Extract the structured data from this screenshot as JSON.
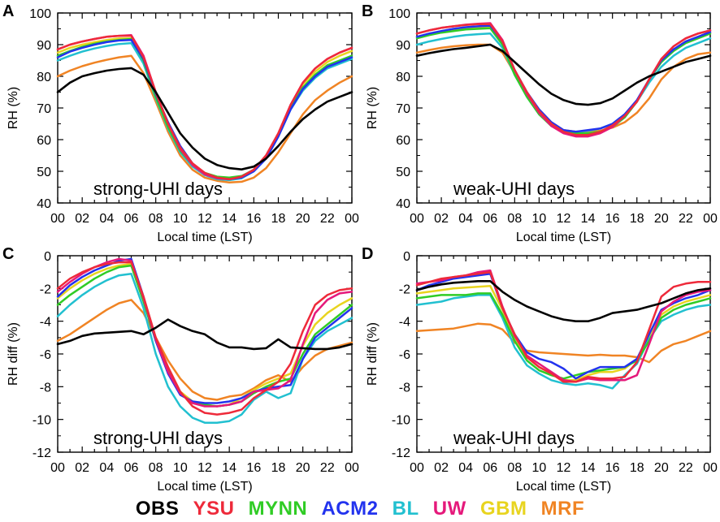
{
  "series_names": [
    "OBS",
    "YSU",
    "MYNN",
    "ACM2",
    "BL",
    "UW",
    "GBM",
    "MRF"
  ],
  "series_colors": {
    "OBS": "#000000",
    "YSU": "#ee2a3a",
    "MYNN": "#30cc25",
    "ACM2": "#2233ee",
    "BL": "#22c0d0",
    "UW": "#e5197b",
    "GBM": "#e8d41f",
    "MRF": "#f08424"
  },
  "x_ticks": [
    "00",
    "02",
    "04",
    "06",
    "08",
    "10",
    "12",
    "14",
    "16",
    "18",
    "20",
    "22",
    "00"
  ],
  "chart_data": [
    {
      "type": "line",
      "panel": "A",
      "annotation": "strong-UHI days",
      "xlabel": "Local time (LST)",
      "ylabel": "RH (%)",
      "xlim": [
        0,
        24
      ],
      "ylim": [
        40,
        100
      ],
      "yticks": [
        40,
        50,
        60,
        70,
        80,
        90,
        100
      ],
      "x": [
        0,
        1,
        2,
        3,
        4,
        5,
        6,
        7,
        8,
        9,
        10,
        11,
        12,
        13,
        14,
        15,
        16,
        17,
        18,
        19,
        20,
        21,
        22,
        23,
        24
      ],
      "series": [
        {
          "name": "OBS",
          "values": [
            75,
            78,
            80,
            81,
            81.8,
            82.3,
            82.6,
            80.5,
            75,
            68.5,
            62,
            57.5,
            54,
            52,
            51,
            50.6,
            51.5,
            54,
            58,
            62.5,
            66.5,
            69.5,
            72,
            73.5,
            75
          ]
        },
        {
          "name": "YSU",
          "values": [
            88.5,
            90,
            91,
            91.8,
            92.5,
            92.8,
            92.8,
            86,
            75,
            65,
            57.5,
            52.5,
            49.5,
            48,
            47.5,
            48.3,
            50.5,
            55,
            62,
            71,
            78,
            82.5,
            85.5,
            87.5,
            89
          ]
        },
        {
          "name": "MYNN",
          "values": [
            86.5,
            88,
            89.3,
            90.3,
            91,
            91.5,
            91.8,
            85,
            73.5,
            64,
            56.5,
            52,
            49.5,
            48.3,
            48,
            48.5,
            50.5,
            54.5,
            61.5,
            70,
            76.5,
            80.5,
            83.5,
            85,
            86.5
          ]
        },
        {
          "name": "ACM2",
          "values": [
            86,
            87.8,
            89,
            90,
            90.8,
            91.3,
            91.5,
            85.5,
            74.5,
            65.5,
            58,
            52.5,
            49.3,
            47.8,
            47.5,
            48,
            50,
            54,
            61,
            69.5,
            76,
            80,
            83,
            84.5,
            86
          ]
        },
        {
          "name": "BL",
          "values": [
            85,
            86.5,
            87.8,
            88.8,
            89.6,
            90.2,
            90.5,
            84,
            73,
            63.5,
            56,
            51.5,
            48.8,
            47.5,
            47.2,
            47.8,
            50,
            54,
            61,
            69.5,
            75.5,
            79.5,
            82.5,
            84,
            85.5
          ]
        },
        {
          "name": "UW",
          "values": [
            88.5,
            90,
            91,
            91.8,
            92.5,
            92.8,
            93,
            86.5,
            75,
            65,
            57,
            52,
            49,
            47.8,
            47.5,
            48.3,
            50.5,
            55,
            62,
            71,
            78,
            82.5,
            85.5,
            87.5,
            89
          ]
        },
        {
          "name": "GBM",
          "values": [
            87.5,
            89,
            90,
            90.8,
            91.5,
            92,
            92,
            86,
            74.5,
            64.5,
            57,
            52,
            49,
            47.8,
            47.5,
            48.3,
            50.5,
            55,
            62,
            70.5,
            77.5,
            81.5,
            84.5,
            86.5,
            88
          ]
        },
        {
          "name": "MRF",
          "values": [
            80,
            81.8,
            83.2,
            84.3,
            85.2,
            86,
            86.5,
            81,
            72,
            62.5,
            55,
            50.5,
            48,
            47,
            46.5,
            46.7,
            48,
            51,
            56,
            62,
            68,
            72.5,
            75.5,
            78,
            80
          ]
        }
      ]
    },
    {
      "type": "line",
      "panel": "B",
      "annotation": "weak-UHI days",
      "xlabel": "Local time (LST)",
      "ylabel": "RH (%)",
      "xlim": [
        0,
        24
      ],
      "ylim": [
        40,
        100
      ],
      "yticks": [
        40,
        50,
        60,
        70,
        80,
        90,
        100
      ],
      "x": [
        0,
        1,
        2,
        3,
        4,
        5,
        6,
        7,
        8,
        9,
        10,
        11,
        12,
        13,
        14,
        15,
        16,
        17,
        18,
        19,
        20,
        21,
        22,
        23,
        24
      ],
      "series": [
        {
          "name": "OBS",
          "values": [
            86.5,
            87.3,
            88,
            88.6,
            89,
            89.5,
            90,
            88,
            84.5,
            81,
            77.5,
            74.5,
            72.5,
            71.3,
            71,
            71.5,
            73,
            75.5,
            78,
            80,
            81.5,
            83,
            84.5,
            85.5,
            86.5
          ]
        },
        {
          "name": "YSU",
          "values": [
            93.5,
            94.5,
            95.3,
            95.8,
            96.2,
            96.5,
            96.5,
            91,
            82,
            75,
            69,
            65,
            62.5,
            61.5,
            61.5,
            62.5,
            64.5,
            67.5,
            72,
            79,
            85.5,
            89.5,
            92,
            93.5,
            94.5
          ]
        },
        {
          "name": "MYNN",
          "values": [
            92,
            93,
            93.8,
            94.3,
            94.8,
            95,
            95.2,
            90,
            80.5,
            73.5,
            68,
            64.3,
            62.5,
            62,
            62,
            62.5,
            64,
            67,
            72,
            79,
            84.5,
            88,
            90.5,
            92,
            93.5
          ]
        },
        {
          "name": "ACM2",
          "values": [
            92.5,
            93.5,
            94.3,
            95,
            95.5,
            95.8,
            96,
            91,
            82,
            75,
            69.5,
            65.5,
            63,
            62.5,
            63,
            63.5,
            65,
            68,
            72.5,
            79,
            85,
            88.5,
            91,
            92.5,
            94
          ]
        },
        {
          "name": "BL",
          "values": [
            90,
            91,
            91.8,
            92.5,
            93,
            93.3,
            93.5,
            89,
            80.5,
            73.5,
            68,
            64.5,
            62.8,
            62.5,
            62.8,
            63.5,
            65,
            68,
            72,
            78,
            83,
            86.5,
            89,
            90.5,
            92
          ]
        },
        {
          "name": "UW",
          "values": [
            93.5,
            94.5,
            95.3,
            95.8,
            96.3,
            96.6,
            96.8,
            91.5,
            82,
            74.5,
            68.5,
            64.3,
            62,
            61,
            61,
            62,
            64,
            67.5,
            72,
            79,
            85.5,
            89.5,
            92,
            93.5,
            94.5
          ]
        },
        {
          "name": "GBM",
          "values": [
            92.5,
            93.3,
            94,
            94.5,
            95,
            95.3,
            95.5,
            90.5,
            81,
            74,
            68.5,
            64.5,
            62.5,
            62,
            62,
            62.5,
            64.5,
            67.5,
            72,
            79,
            84.5,
            88.5,
            91,
            92.5,
            94
          ]
        },
        {
          "name": "MRF",
          "values": [
            87.5,
            88.3,
            89,
            89.5,
            89.8,
            90,
            90,
            87.5,
            81,
            74.5,
            69.5,
            65.5,
            63,
            62.5,
            62.5,
            62.8,
            63.8,
            65.5,
            68.5,
            73,
            79,
            83,
            85.5,
            87,
            87.5
          ]
        }
      ]
    },
    {
      "type": "line",
      "panel": "C",
      "annotation": "strong-UHI days",
      "xlabel": "Local time (LST)",
      "ylabel": "RH diff (%)",
      "xlim": [
        0,
        24
      ],
      "ylim": [
        -12,
        0
      ],
      "yticks": [
        -12,
        -10,
        -8,
        -6,
        -4,
        -2,
        0
      ],
      "x": [
        0,
        1,
        2,
        3,
        4,
        5,
        6,
        7,
        8,
        9,
        10,
        11,
        12,
        13,
        14,
        15,
        16,
        17,
        18,
        19,
        20,
        21,
        22,
        23,
        24
      ],
      "series": [
        {
          "name": "OBS",
          "values": [
            -5.4,
            -5.2,
            -4.9,
            -4.75,
            -4.7,
            -4.65,
            -4.6,
            -4.8,
            -4.4,
            -3.9,
            -4.3,
            -4.6,
            -4.8,
            -5.3,
            -5.6,
            -5.6,
            -5.7,
            -5.65,
            -5.1,
            -5.6,
            -5.65,
            -5.7,
            -5.7,
            -5.6,
            -5.4
          ]
        },
        {
          "name": "YSU",
          "values": [
            -2,
            -1.4,
            -1,
            -0.7,
            -0.5,
            -0.4,
            -0.4,
            -2.5,
            -5,
            -6.8,
            -8.3,
            -9.2,
            -9.6,
            -9.7,
            -9.6,
            -9.4,
            -8.7,
            -8.2,
            -7.7,
            -6.6,
            -4.6,
            -3,
            -2.4,
            -2.1,
            -2
          ]
        },
        {
          "name": "MYNN",
          "values": [
            -3,
            -2.4,
            -1.9,
            -1.4,
            -1,
            -0.7,
            -0.6,
            -2.8,
            -5.2,
            -7,
            -8.4,
            -9,
            -9.1,
            -9.2,
            -9.1,
            -8.9,
            -8.4,
            -8,
            -7.7,
            -7.5,
            -6,
            -4.8,
            -4.2,
            -3.6,
            -3
          ]
        },
        {
          "name": "ACM2",
          "values": [
            -2.5,
            -1.8,
            -1.3,
            -0.9,
            -0.6,
            -0.3,
            -0.2,
            -2.5,
            -5.2,
            -7.2,
            -8.5,
            -8.9,
            -9,
            -9,
            -8.9,
            -8.7,
            -8.3,
            -8.1,
            -8,
            -7.9,
            -6.3,
            -5,
            -4.4,
            -3.8,
            -3.2
          ]
        },
        {
          "name": "BL",
          "values": [
            -3.7,
            -3,
            -2.4,
            -1.9,
            -1.5,
            -1.2,
            -1.1,
            -3.2,
            -6,
            -8,
            -9.2,
            -9.9,
            -10.2,
            -10.2,
            -10.1,
            -9.7,
            -8.8,
            -8.3,
            -8.7,
            -8.4,
            -6.3,
            -5.2,
            -4.6,
            -4.2,
            -3.8
          ]
        },
        {
          "name": "UW",
          "values": [
            -2.2,
            -1.6,
            -1.1,
            -0.7,
            -0.4,
            -0.2,
            -0.3,
            -2.6,
            -5.1,
            -7.1,
            -8.4,
            -9,
            -9.2,
            -9.2,
            -9.1,
            -8.9,
            -8.3,
            -8.2,
            -8.1,
            -7.6,
            -5.4,
            -3.5,
            -2.7,
            -2.3,
            -2.2
          ]
        },
        {
          "name": "GBM",
          "values": [
            -2.6,
            -2,
            -1.5,
            -1.1,
            -0.8,
            -0.6,
            -0.5,
            -2.7,
            -5.1,
            -7.1,
            -8.3,
            -8.9,
            -9.1,
            -9.2,
            -9.1,
            -8.7,
            -8.2,
            -7.8,
            -7.5,
            -7.2,
            -5.5,
            -4.2,
            -3.5,
            -3,
            -2.6
          ]
        },
        {
          "name": "MRF",
          "values": [
            -5.2,
            -4.8,
            -4.3,
            -3.8,
            -3.3,
            -2.9,
            -2.7,
            -3.5,
            -5,
            -6.4,
            -7.5,
            -8.3,
            -8.7,
            -8.8,
            -8.6,
            -8.5,
            -8.1,
            -7.6,
            -7.3,
            -7.7,
            -6.8,
            -6.1,
            -5.7,
            -5.5,
            -5.3
          ]
        }
      ]
    },
    {
      "type": "line",
      "panel": "D",
      "annotation": "weak-UHI days",
      "xlabel": "Local time (LST)",
      "ylabel": "RH diff (%)",
      "xlim": [
        0,
        24
      ],
      "ylim": [
        -12,
        0
      ],
      "yticks": [
        -12,
        -10,
        -8,
        -6,
        -4,
        -2,
        0
      ],
      "x": [
        0,
        1,
        2,
        3,
        4,
        5,
        6,
        7,
        8,
        9,
        10,
        11,
        12,
        13,
        14,
        15,
        16,
        17,
        18,
        19,
        20,
        21,
        22,
        23,
        24
      ],
      "series": [
        {
          "name": "OBS",
          "values": [
            -2.1,
            -1.9,
            -1.75,
            -1.65,
            -1.6,
            -1.55,
            -1.55,
            -2.2,
            -2.7,
            -3.1,
            -3.4,
            -3.7,
            -3.9,
            -4,
            -4,
            -3.8,
            -3.5,
            -3.4,
            -3.3,
            -3.1,
            -2.9,
            -2.6,
            -2.3,
            -2.1,
            -2
          ]
        },
        {
          "name": "YSU",
          "values": [
            -1.8,
            -1.6,
            -1.4,
            -1.3,
            -1.2,
            -1.1,
            -1.0,
            -3.2,
            -4.8,
            -6.2,
            -6.8,
            -7.2,
            -7.7,
            -7.7,
            -7.4,
            -7.5,
            -7.5,
            -7.4,
            -6.5,
            -4.5,
            -2.5,
            -1.9,
            -1.7,
            -1.6,
            -1.6
          ]
        },
        {
          "name": "MYNN",
          "values": [
            -2.6,
            -2.5,
            -2.4,
            -2.4,
            -2.4,
            -2.3,
            -2.3,
            -3.6,
            -5.2,
            -6.4,
            -7,
            -7.3,
            -7.5,
            -7.3,
            -7.1,
            -7,
            -6.9,
            -6.8,
            -6.4,
            -5.2,
            -3.8,
            -3.3,
            -3,
            -2.8,
            -2.6
          ]
        },
        {
          "name": "ACM2",
          "values": [
            -2.1,
            -1.8,
            -1.6,
            -1.4,
            -1.3,
            -1.2,
            -1.1,
            -3.2,
            -4.8,
            -5.9,
            -6.3,
            -6.5,
            -6.9,
            -7.5,
            -7.1,
            -6.8,
            -6.8,
            -6.8,
            -6.3,
            -4.8,
            -3.3,
            -2.9,
            -2.6,
            -2.4,
            -2.1
          ]
        },
        {
          "name": "BL",
          "values": [
            -3,
            -2.9,
            -2.8,
            -2.6,
            -2.5,
            -2.4,
            -2.4,
            -3.8,
            -5.6,
            -6.7,
            -7.2,
            -7.6,
            -7.8,
            -7.9,
            -7.8,
            -7.9,
            -8.1,
            -7.3,
            -6.6,
            -5.1,
            -4,
            -3.6,
            -3.3,
            -3.1,
            -3
          ]
        },
        {
          "name": "UW",
          "values": [
            -1.7,
            -1.6,
            -1.5,
            -1.3,
            -1.2,
            -1.0,
            -0.9,
            -3.1,
            -4.9,
            -6.1,
            -6.6,
            -7.1,
            -7.6,
            -7.7,
            -7.5,
            -7.6,
            -7.6,
            -7.6,
            -7.3,
            -5.4,
            -3.4,
            -2.8,
            -2.4,
            -2.2,
            -2.1
          ]
        },
        {
          "name": "GBM",
          "values": [
            -2.3,
            -2.2,
            -2.1,
            -2,
            -1.95,
            -1.9,
            -1.85,
            -3.3,
            -5,
            -6.2,
            -6.8,
            -7.2,
            -7.6,
            -7.6,
            -7.3,
            -7.1,
            -7.1,
            -6.9,
            -6.3,
            -4.9,
            -3.6,
            -3.1,
            -2.8,
            -2.6,
            -2.4
          ]
        },
        {
          "name": "MRF",
          "values": [
            -4.6,
            -4.55,
            -4.5,
            -4.45,
            -4.3,
            -4.15,
            -4.2,
            -4.5,
            -5.3,
            -5.8,
            -5.9,
            -5.95,
            -6,
            -6.05,
            -6.1,
            -6.05,
            -6.1,
            -6.1,
            -6.2,
            -6.5,
            -5.8,
            -5.4,
            -5.2,
            -4.9,
            -4.6
          ]
        }
      ]
    }
  ]
}
